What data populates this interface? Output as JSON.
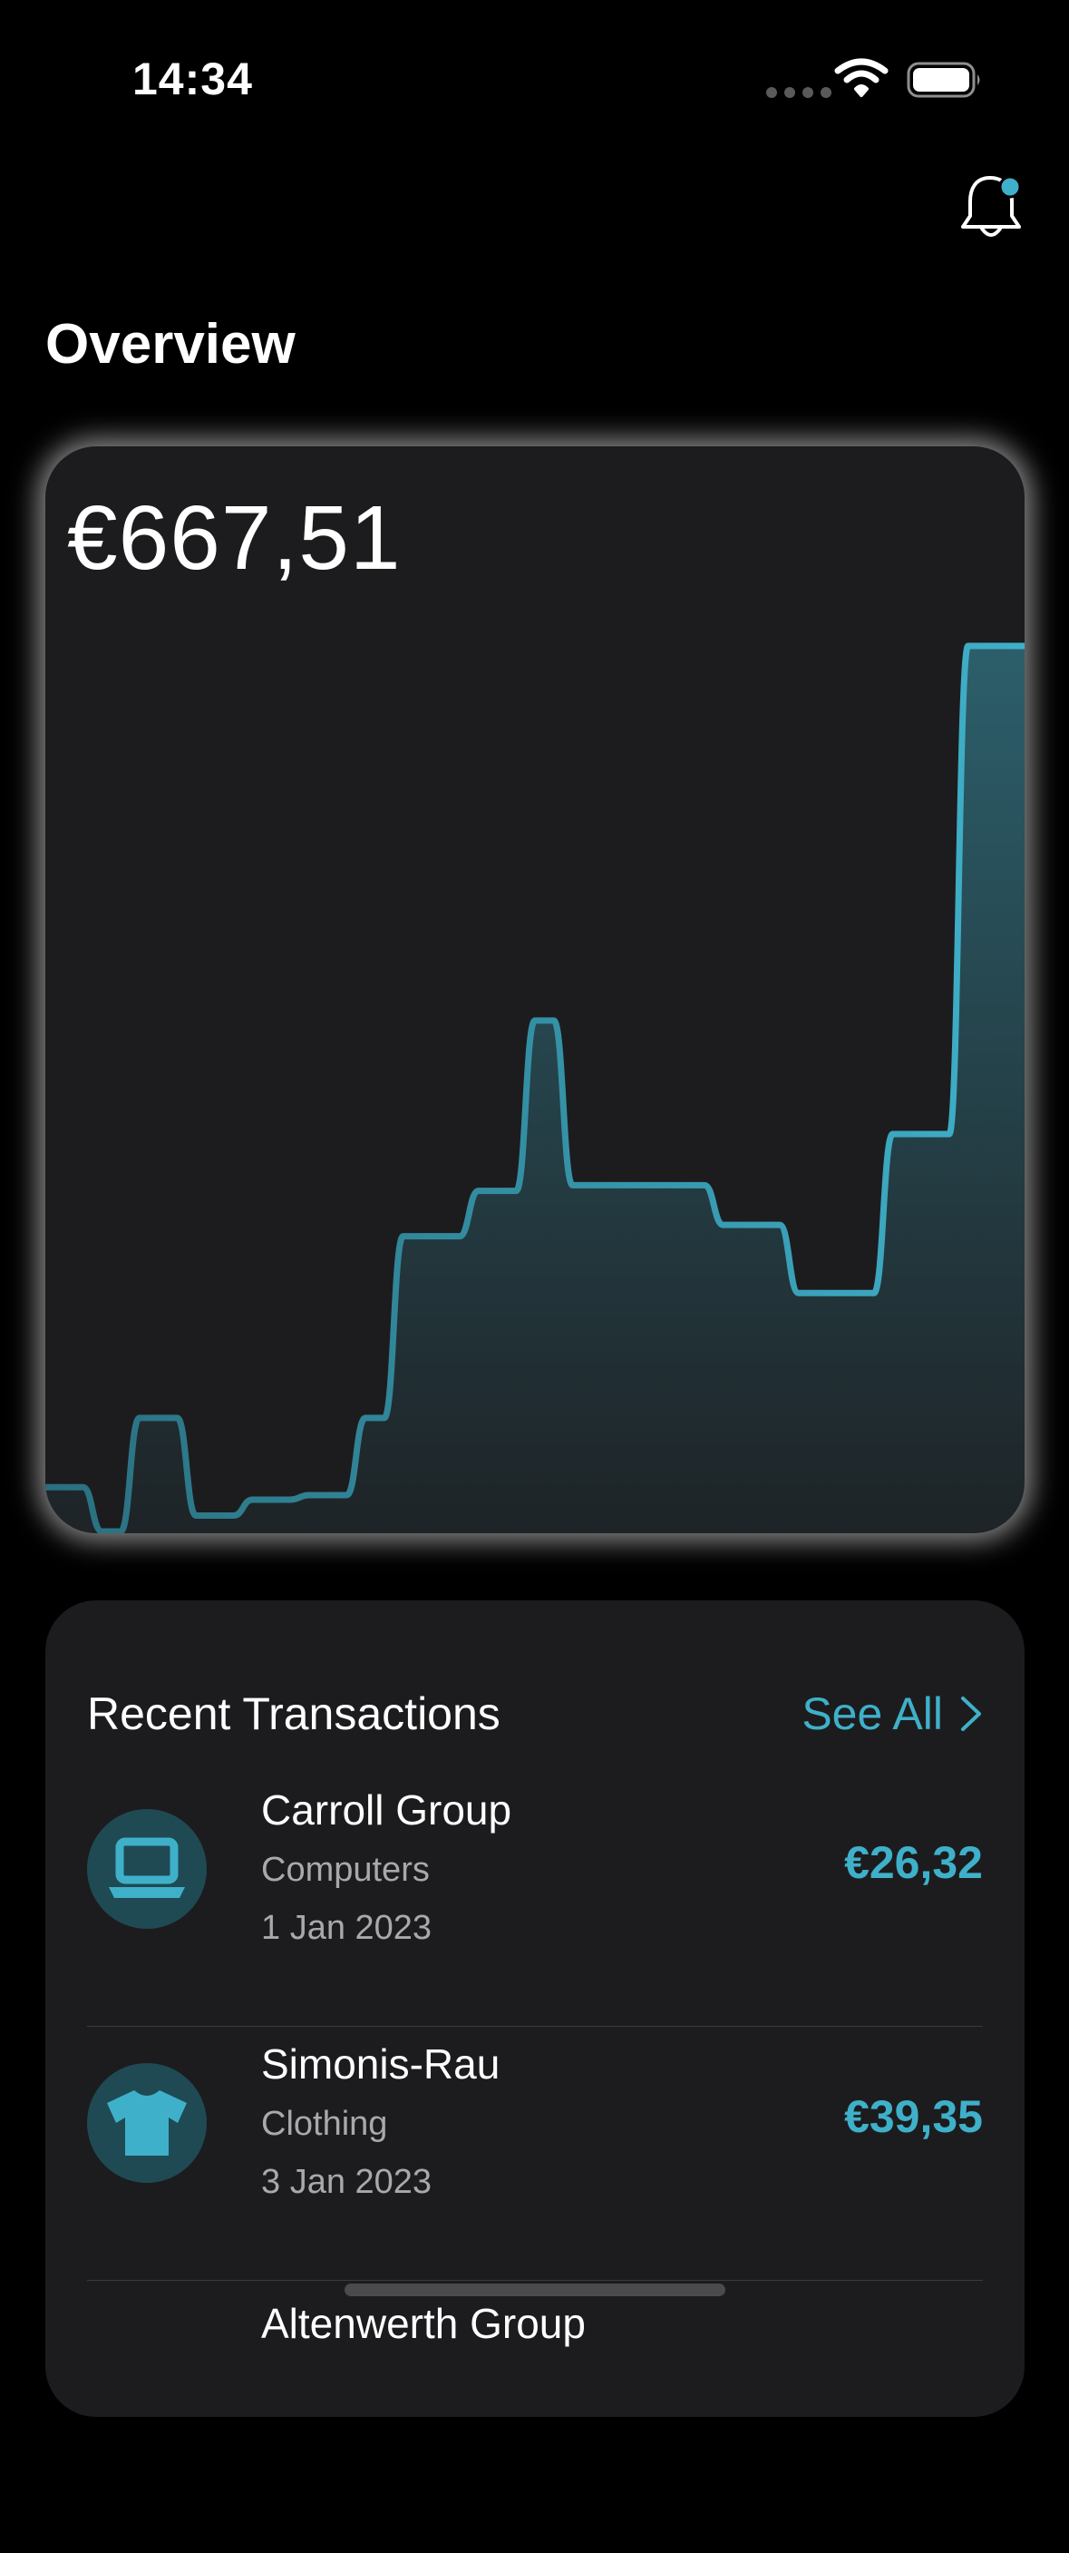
{
  "status_bar": {
    "time": "14:34"
  },
  "header": {
    "notification_icon": "bell-icon",
    "has_unread": true
  },
  "page": {
    "title": "Overview"
  },
  "balance": {
    "amount": "€667,51"
  },
  "colors": {
    "accent": "#3fb0c9",
    "card": "#1c1c1e",
    "icon_bg": "#1f4a54"
  },
  "chart_data": {
    "type": "area",
    "series": [
      {
        "values": [
          39,
          39,
          39,
          0,
          0,
          100,
          100,
          100,
          14,
          14,
          14,
          28,
          28,
          28,
          32,
          32,
          32,
          100,
          100,
          260,
          260,
          260,
          260,
          300,
          300,
          300,
          450,
          450,
          305,
          305,
          305,
          305,
          305,
          305,
          305,
          305,
          270,
          270,
          270,
          270,
          210,
          210,
          210,
          210,
          210,
          350,
          350,
          350,
          350,
          780,
          780,
          780,
          780
        ]
      }
    ]
  },
  "transactions": {
    "title": "Recent Transactions",
    "see_all": "See All",
    "items": [
      {
        "merchant": "Carroll Group",
        "category": "Computers",
        "date": "1 Jan 2023",
        "amount": "€26,32",
        "icon": "laptop-icon"
      },
      {
        "merchant": "Simonis-Rau",
        "category": "Clothing",
        "date": "3 Jan 2023",
        "amount": "€39,35",
        "icon": "tshirt-icon"
      },
      {
        "merchant": "Altenwerth Group",
        "category": "",
        "date": "",
        "amount": "",
        "icon": ""
      }
    ]
  }
}
